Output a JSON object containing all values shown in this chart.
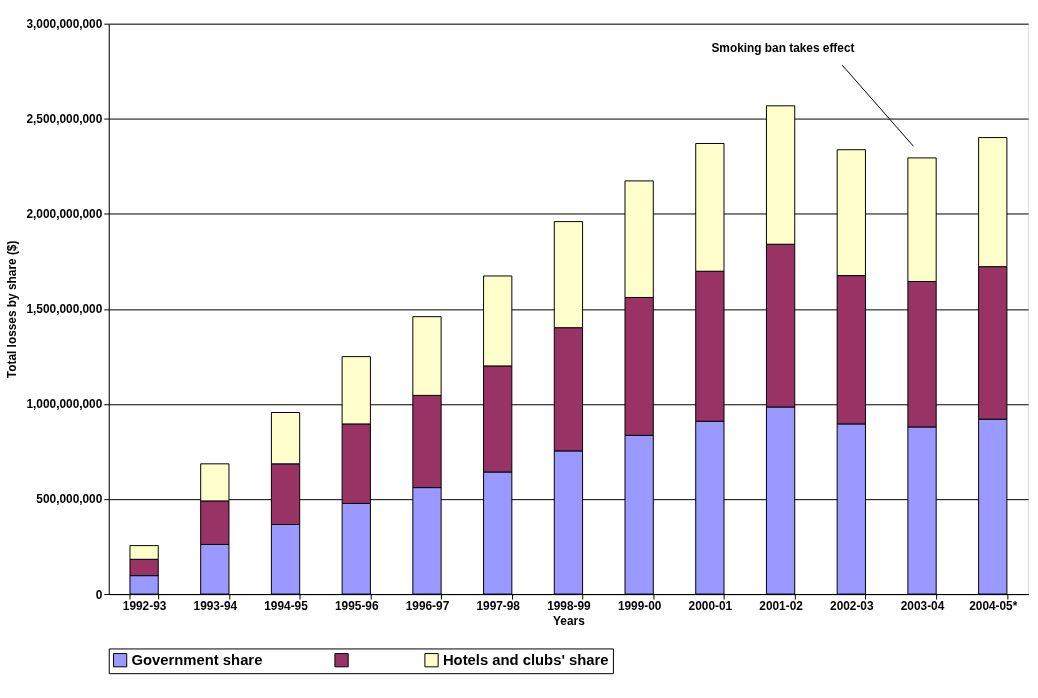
{
  "chart_data": {
    "type": "bar",
    "stacked": true,
    "xlabel": "Years",
    "ylabel": "Total losses by share ($)",
    "categories": [
      "1992-93",
      "1993-94",
      "1994-95",
      "1995-96",
      "1996-97",
      "1997-98",
      "1998-99",
      "1999-00",
      "2000-01",
      "2001-02",
      "2002-03",
      "2003-04",
      "2004-05*"
    ],
    "series": [
      {
        "name": "Government share",
        "color": "#9999ff",
        "values": [
          97000000,
          261000000,
          366000000,
          477000000,
          560000000,
          642000000,
          753000000,
          835000000,
          909000000,
          984000000,
          895000000,
          879000000,
          920000000
        ]
      },
      {
        "color": "#993366",
        "values": [
          86000000,
          229000000,
          319000000,
          418000000,
          485000000,
          558000000,
          648000000,
          725000000,
          789000000,
          856000000,
          780000000,
          765000000,
          802000000
        ]
      },
      {
        "name": "Hotels and clubs' share",
        "color": "#ffffcc",
        "values": [
          72000000,
          195000000,
          270000000,
          354000000,
          414000000,
          473000000,
          558000000,
          613000000,
          672000000,
          728000000,
          662000000,
          650000000,
          679000000
        ]
      }
    ],
    "ylim": [
      0,
      3000000000
    ],
    "yticks": [
      0,
      {
        "value": 500000000,
        "label": "500,000,000"
      },
      {
        "value": 1000000000,
        "label": "1,000,000,000"
      },
      {
        "value": 1500000000,
        "label": "1,500,000,000"
      },
      {
        "value": 2000000000,
        "label": "2,000,000,000"
      },
      {
        "value": 2500000000,
        "label": "2,500,000,000"
      },
      {
        "value": 3000000000,
        "label": "3,000,000,000"
      }
    ],
    "grid": "y",
    "legend": "bottom",
    "annotations": [
      "Smoking ban takes effect"
    ]
  }
}
